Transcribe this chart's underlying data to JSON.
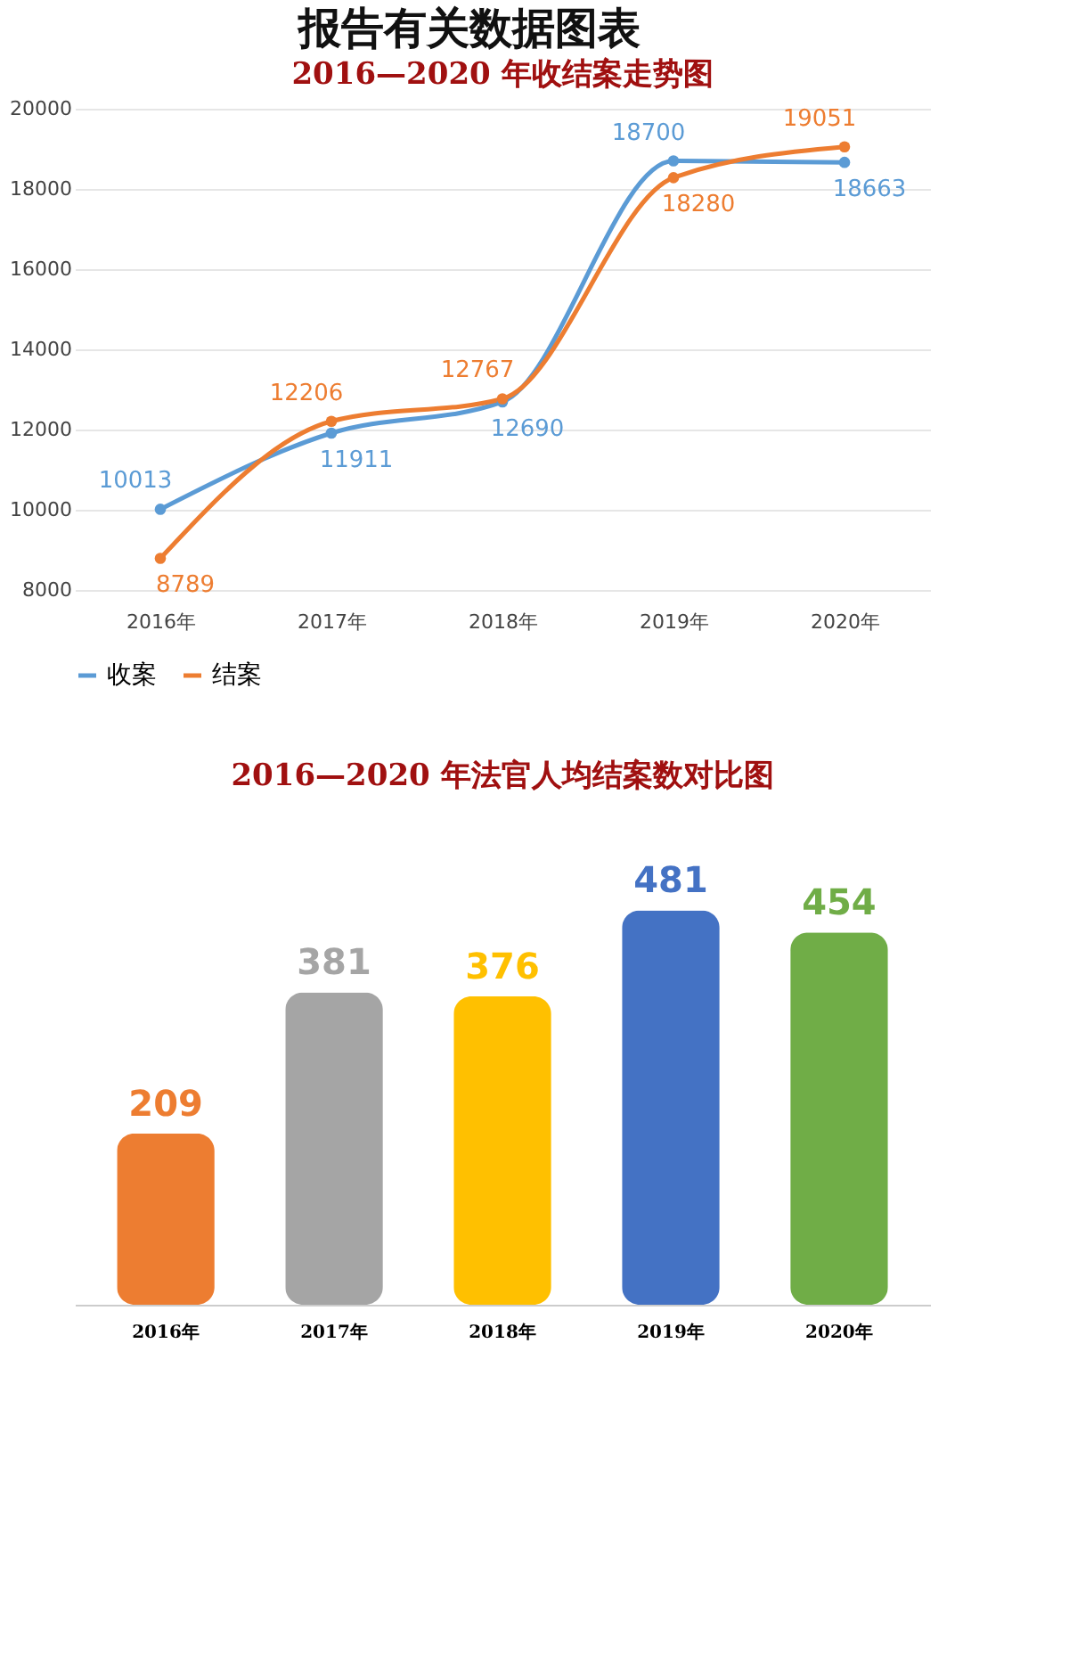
{
  "chart_data": [
    {
      "type": "line",
      "title": "报告有关数据图表",
      "subtitle": "2016—2020 年收结案走势图",
      "categories": [
        "2016年",
        "2017年",
        "2018年",
        "2019年",
        "2020年"
      ],
      "series": [
        {
          "name": "收案",
          "color": "#5b9bd5",
          "values": [
            10013,
            11911,
            12690,
            18700,
            18663
          ]
        },
        {
          "name": "结案",
          "color": "#ed7d31",
          "values": [
            8789,
            12206,
            12767,
            18280,
            19051
          ]
        }
      ],
      "ylim": [
        8000,
        20000
      ],
      "yticks": [
        8000,
        10000,
        12000,
        14000,
        16000,
        18000,
        20000
      ],
      "grid": "y",
      "legend": "bottom",
      "marker": "circle",
      "line_style": "solid",
      "data_labels": true
    },
    {
      "type": "bar",
      "title": "2016—2020 年法官人均结案数对比图",
      "categories": [
        "2016年",
        "2017年",
        "2018年",
        "2019年",
        "2020年"
      ],
      "values": [
        209,
        381,
        376,
        481,
        454
      ],
      "colors": [
        "#ed7d31",
        "#a5a5a5",
        "#ffc000",
        "#4472c4",
        "#70ad47"
      ],
      "data_labels": true,
      "grid": false,
      "tick_labels": "x"
    }
  ]
}
